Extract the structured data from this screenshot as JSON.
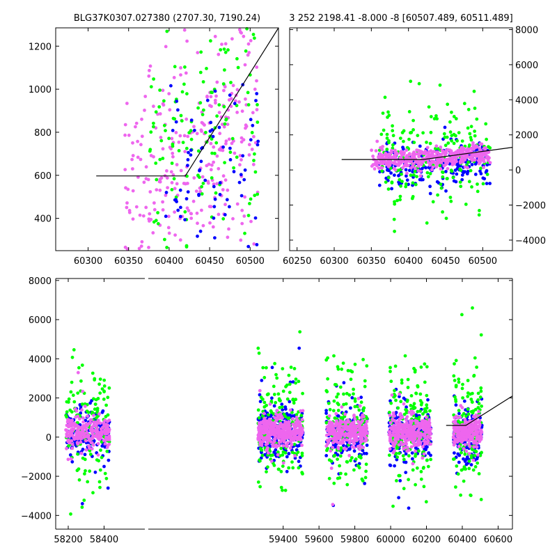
{
  "chart_data": [
    {
      "id": "top-left",
      "type": "scatter",
      "title": "BLG37K0307.027380 (2707.30, 7190.24)",
      "xlim": [
        60260,
        60535
      ],
      "ylim": [
        250,
        1285
      ],
      "xticks": [
        60300,
        60350,
        60400,
        60450,
        60500
      ],
      "yticks": [
        400,
        600,
        800,
        1000,
        1200
      ],
      "ytick_side": "left",
      "model_line": [
        [
          60310,
          597
        ],
        [
          60420,
          597
        ],
        [
          60535,
          1285
        ]
      ],
      "series": [
        {
          "color": "#ee66ee",
          "count": 330,
          "x_range": [
            60345,
            60510
          ],
          "y_mean": 700,
          "y_sd": 300,
          "drift": 2.2
        },
        {
          "color": "#00ff00",
          "count": 150,
          "x_range": [
            60375,
            60510
          ],
          "y_mean": 800,
          "y_sd": 330,
          "drift": 1.5
        },
        {
          "color": "#0000ff",
          "count": 80,
          "x_range": [
            60395,
            60510
          ],
          "y_mean": 620,
          "y_sd": 260,
          "drift": 1.0
        }
      ]
    },
    {
      "id": "top-right",
      "type": "scatter",
      "title": "3 252 2198.41 -8.000 -8 [60507.489, 60511.489]",
      "xlim": [
        60240,
        60540
      ],
      "ylim": [
        -4600,
        8100
      ],
      "xticks": [
        60250,
        60300,
        60350,
        60400,
        60450,
        60500
      ],
      "yticks": [
        -4000,
        -2000,
        0,
        2000,
        4000,
        6000,
        8000
      ],
      "ytick_side": "right",
      "model_line": [
        [
          60310,
          597
        ],
        [
          60420,
          597
        ],
        [
          60540,
          1290
        ]
      ],
      "series": [
        {
          "color": "#0000ff",
          "count": 220,
          "x_range": [
            60360,
            60510
          ],
          "y_mean": 250,
          "y_sd": 650
        },
        {
          "color": "#00ff00",
          "count": 200,
          "x_range": [
            60360,
            60510
          ],
          "y_mean": 700,
          "y_sd": 1400
        },
        {
          "color": "#ee66ee",
          "count": 420,
          "x_range": [
            60350,
            60510
          ],
          "y_mean": 600,
          "y_sd": 300
        }
      ]
    },
    {
      "id": "bottom",
      "type": "scatter",
      "title": "",
      "xlim": [
        58130,
        60680
      ],
      "ylim": [
        -4700,
        8100
      ],
      "xticks": [
        58200,
        58400,
        59400,
        59600,
        59800,
        60000,
        60200,
        60400,
        60600
      ],
      "yticks": [
        -4000,
        -2000,
        0,
        2000,
        4000,
        6000,
        8000
      ],
      "ytick_side": "left",
      "gap_at_x": 58450,
      "model_line": [
        [
          60310,
          597
        ],
        [
          60420,
          597
        ],
        [
          60680,
          2100
        ]
      ],
      "seasons": [
        {
          "x_range": [
            58185,
            58430
          ],
          "points": 520
        },
        {
          "x_range": [
            59260,
            59510
          ],
          "points": 760
        },
        {
          "x_range": [
            59640,
            59870
          ],
          "points": 620
        },
        {
          "x_range": [
            59990,
            60225
          ],
          "points": 680
        },
        {
          "x_range": [
            60350,
            60510
          ],
          "points": 520
        }
      ],
      "series": [
        {
          "color": "#0000ff",
          "share": 0.3,
          "y_mean": 150,
          "y_sd": 700
        },
        {
          "color": "#00ff00",
          "share": 0.25,
          "y_mean": 500,
          "y_sd": 1500
        },
        {
          "color": "#ee66ee",
          "share": 0.45,
          "y_mean": 250,
          "y_sd": 380
        }
      ]
    }
  ]
}
